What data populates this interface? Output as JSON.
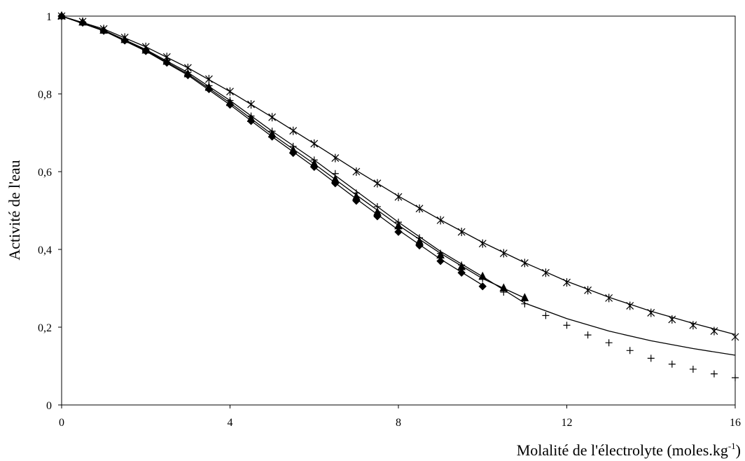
{
  "chart_data": {
    "type": "scatter",
    "ylabel": "Activité de l'eau",
    "xlabel": [
      "Molalité de l'électrolyte (moles.kg",
      "-1",
      ")"
    ],
    "xlim": [
      0,
      16
    ],
    "xticks": [
      0,
      4,
      8,
      12,
      16
    ],
    "ylim": [
      0,
      1
    ],
    "yticks": [
      0,
      {
        "value": 0.2,
        "label": "0,2"
      },
      {
        "value": 0.4,
        "label": "0,4"
      },
      {
        "value": 0.6,
        "label": "0,6"
      },
      {
        "value": 0.8,
        "label": "0,8"
      },
      1
    ],
    "grid": false,
    "series": [
      {
        "style": "diamond",
        "color": "#000000",
        "x": [
          0,
          0.5,
          1,
          1.5,
          2,
          2.5,
          3,
          3.5,
          4,
          4.5,
          5,
          5.5,
          6,
          6.5,
          7,
          7.5,
          8,
          8.5,
          9,
          9.5,
          10
        ],
        "values": [
          1,
          0.983,
          0.962,
          0.937,
          0.91,
          0.88,
          0.848,
          0.812,
          0.772,
          0.73,
          0.69,
          0.648,
          0.612,
          0.57,
          0.525,
          0.485,
          0.445,
          0.41,
          0.37,
          0.34,
          0.305
        ]
      },
      {
        "style": "triangle",
        "color": "#000000",
        "x": [
          0,
          0.5,
          1,
          1.5,
          2,
          2.5,
          3,
          3.5,
          4,
          4.5,
          5,
          5.5,
          6,
          6.5,
          7,
          7.5,
          8,
          8.5,
          9,
          9.5,
          10,
          10.5,
          11
        ],
        "values": [
          1,
          0.984,
          0.963,
          0.939,
          0.912,
          0.883,
          0.851,
          0.816,
          0.777,
          0.736,
          0.696,
          0.655,
          0.62,
          0.58,
          0.535,
          0.495,
          0.46,
          0.42,
          0.385,
          0.355,
          0.33,
          0.3,
          0.275
        ]
      },
      {
        "style": "plus",
        "color": "#000000",
        "x": [
          0,
          0.5,
          1,
          1.5,
          2,
          2.5,
          3,
          3.5,
          4,
          4.5,
          5,
          5.5,
          6,
          6.5,
          7,
          7.5,
          8,
          8.5,
          9,
          9.5,
          10,
          10.5,
          11,
          11.5,
          12,
          12.5,
          13,
          13.5,
          14,
          14.5,
          15,
          15.5,
          16
        ],
        "values": [
          1,
          0.985,
          0.964,
          0.94,
          0.914,
          0.886,
          0.855,
          0.821,
          0.783,
          0.743,
          0.704,
          0.665,
          0.63,
          0.595,
          0.545,
          0.51,
          0.47,
          0.43,
          0.39,
          0.36,
          0.325,
          0.29,
          0.26,
          0.23,
          0.205,
          0.18,
          0.16,
          0.14,
          0.12,
          0.105,
          0.092,
          0.08,
          0.07
        ]
      },
      {
        "style": "asterisk",
        "color": "#000000",
        "x": [
          0,
          0.5,
          1,
          1.5,
          2,
          2.5,
          3,
          3.5,
          4,
          4.5,
          5,
          5.5,
          6,
          6.5,
          7,
          7.5,
          8,
          8.5,
          9,
          9.5,
          10,
          10.5,
          11,
          11.5,
          12,
          12.5,
          13,
          13.5,
          14,
          14.5,
          15,
          15.5,
          16
        ],
        "values": [
          1,
          0.986,
          0.967,
          0.945,
          0.921,
          0.895,
          0.867,
          0.838,
          0.806,
          0.773,
          0.74,
          0.705,
          0.672,
          0.635,
          0.6,
          0.57,
          0.535,
          0.505,
          0.475,
          0.445,
          0.415,
          0.39,
          0.365,
          0.34,
          0.315,
          0.295,
          0.275,
          0.255,
          0.237,
          0.22,
          0.205,
          0.19,
          0.175
        ]
      },
      {
        "style": "line",
        "color": "#000000",
        "x": [
          0,
          1,
          2,
          3,
          4,
          5,
          6,
          7,
          8,
          9,
          10
        ],
        "values": [
          1,
          0.962,
          0.91,
          0.848,
          0.772,
          0.69,
          0.612,
          0.53,
          0.45,
          0.375,
          0.308
        ]
      },
      {
        "style": "line",
        "color": "#000000",
        "x": [
          0,
          1,
          2,
          3,
          4,
          5,
          6,
          7,
          8,
          9,
          10,
          11
        ],
        "values": [
          1,
          0.963,
          0.912,
          0.851,
          0.777,
          0.696,
          0.62,
          0.54,
          0.462,
          0.39,
          0.325,
          0.275
        ]
      },
      {
        "style": "line",
        "color": "#000000",
        "x": [
          0,
          1,
          2,
          3,
          4,
          5,
          6,
          7,
          8,
          9,
          10,
          11,
          12,
          13,
          14,
          15,
          16
        ],
        "values": [
          1,
          0.964,
          0.914,
          0.855,
          0.783,
          0.704,
          0.63,
          0.55,
          0.47,
          0.395,
          0.33,
          0.262,
          0.222,
          0.19,
          0.165,
          0.145,
          0.128
        ]
      },
      {
        "style": "line",
        "color": "#000000",
        "x": [
          0,
          1,
          2,
          3,
          4,
          5,
          6,
          7,
          8,
          9,
          10,
          11,
          12,
          13,
          14,
          15,
          16
        ],
        "values": [
          1,
          0.967,
          0.921,
          0.867,
          0.806,
          0.74,
          0.672,
          0.603,
          0.537,
          0.476,
          0.418,
          0.366,
          0.318,
          0.277,
          0.241,
          0.21,
          0.181
        ]
      }
    ]
  }
}
